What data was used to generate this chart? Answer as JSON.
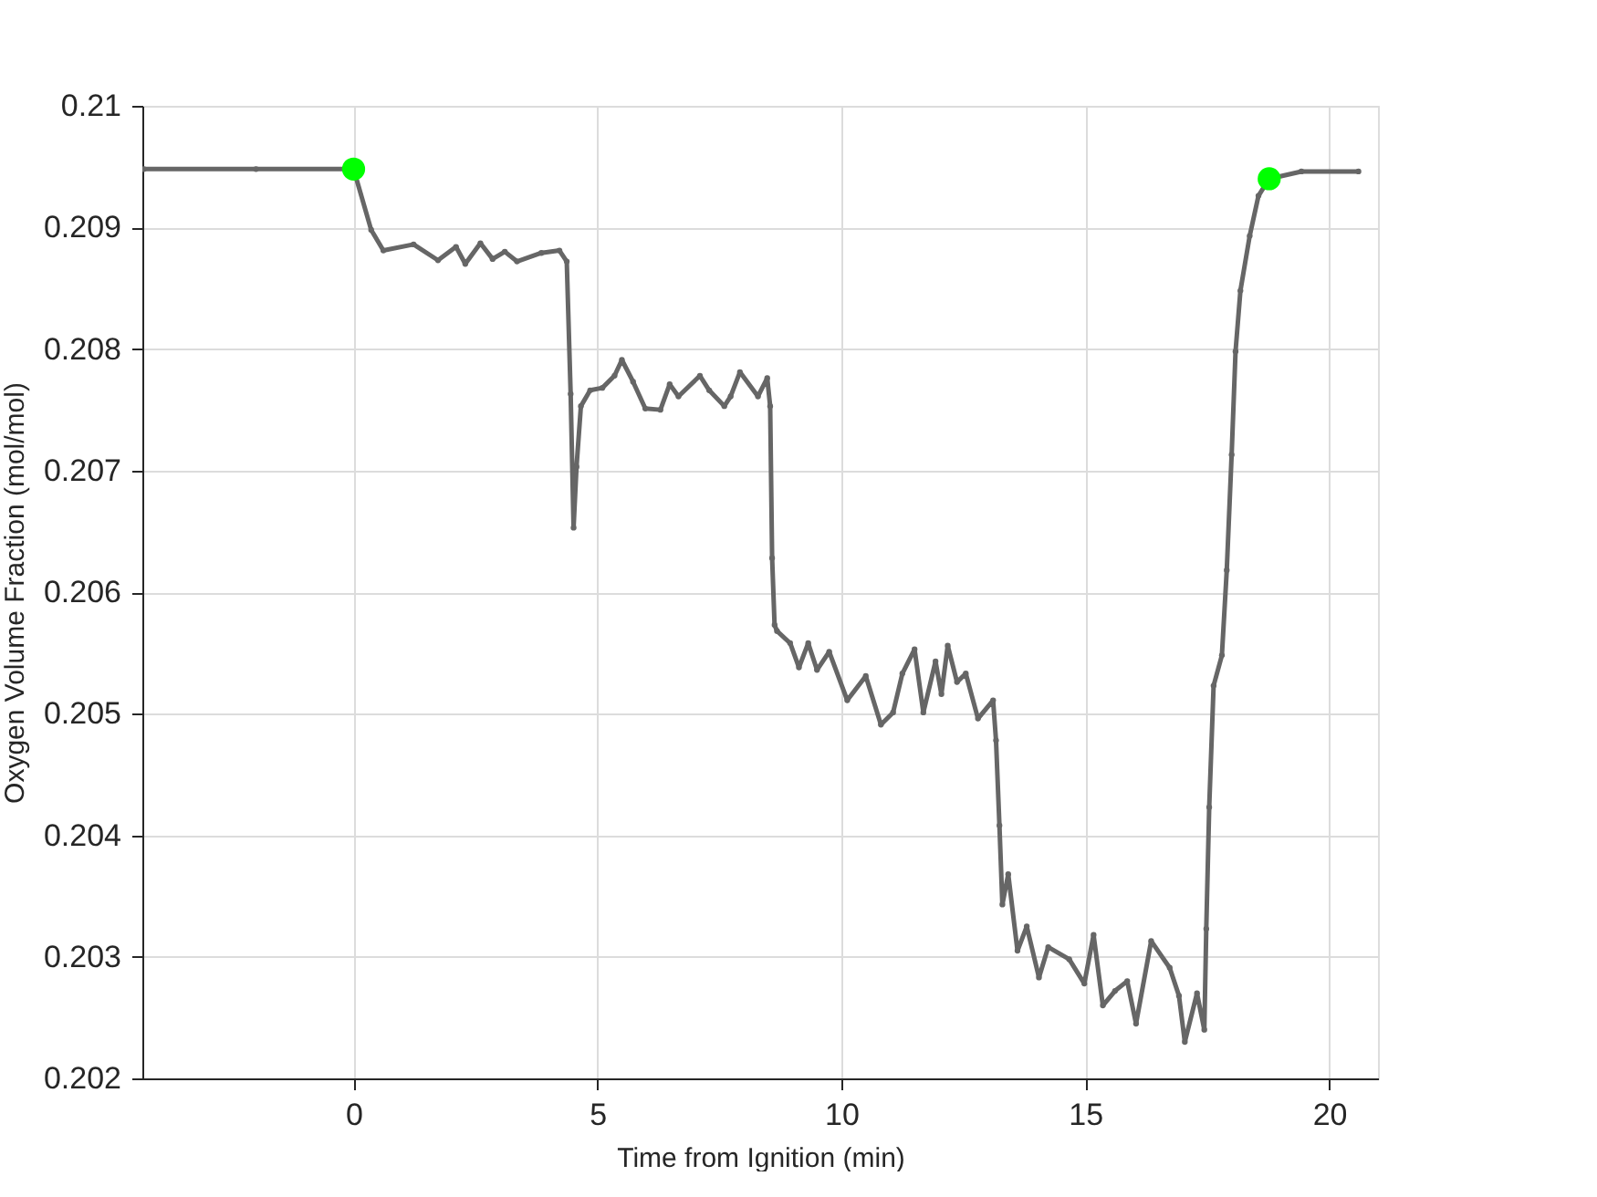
{
  "chart_data": {
    "type": "line",
    "xlabel": "Time from Ignition (min)",
    "ylabel": "Oxygen Volume Fraction (mol/mol)",
    "xlim": [
      -4.33,
      21
    ],
    "ylim": [
      0.202,
      0.21
    ],
    "xticks": [
      0,
      5,
      10,
      15,
      20
    ],
    "yticks": [
      0.202,
      0.203,
      0.204,
      0.205,
      0.206,
      0.207,
      0.208,
      0.209,
      0.21
    ],
    "grid": true,
    "marker": "circle",
    "line_style": "solid",
    "series": [
      {
        "color": "#666666",
        "x": [
          -4.3,
          -2,
          0,
          0.36,
          0.61,
          1.23,
          1.73,
          2.1,
          2.29,
          2.6,
          2.85,
          3.1,
          3.35,
          3.85,
          4.22,
          4.37,
          4.45,
          4.51,
          4.57,
          4.66,
          4.85,
          5.1,
          5.35,
          5.5,
          5.73,
          5.98,
          6.29,
          6.48,
          6.66,
          7.1,
          7.29,
          7.6,
          7.73,
          7.92,
          8.29,
          8.48,
          8.54,
          8.58,
          8.63,
          8.68,
          8.95,
          9.13,
          9.32,
          9.5,
          9.75,
          10.12,
          10.5,
          10.81,
          11.06,
          11.25,
          11.5,
          11.68,
          11.93,
          12.05,
          12.18,
          12.37,
          12.55,
          12.8,
          13.11,
          13.17,
          13.24,
          13.3,
          13.42,
          13.61,
          13.8,
          14.05,
          14.24,
          14.67,
          14.98,
          15.17,
          15.36,
          15.61,
          15.86,
          16.04,
          16.35,
          16.73,
          16.92,
          17.04,
          17.29,
          17.44,
          17.48,
          17.54,
          17.63,
          17.8,
          17.9,
          18.0,
          18.08,
          18.18,
          18.37,
          18.55,
          18.77,
          19.43,
          20.6
        ],
        "values": [
          0.20948,
          0.20948,
          0.20948,
          0.20898,
          0.20881,
          0.20886,
          0.20873,
          0.20884,
          0.2087,
          0.20887,
          0.20874,
          0.2088,
          0.20872,
          0.20879,
          0.20881,
          0.20872,
          0.20763,
          0.20653,
          0.20703,
          0.20753,
          0.20766,
          0.20768,
          0.20778,
          0.20791,
          0.20773,
          0.20751,
          0.2075,
          0.20771,
          0.20761,
          0.20778,
          0.20766,
          0.20753,
          0.20761,
          0.20781,
          0.20761,
          0.20776,
          0.20753,
          0.20628,
          0.20573,
          0.20568,
          0.20558,
          0.20538,
          0.20558,
          0.20536,
          0.20551,
          0.20511,
          0.20531,
          0.20491,
          0.20501,
          0.20533,
          0.20553,
          0.20501,
          0.20543,
          0.20516,
          0.20556,
          0.20526,
          0.20533,
          0.20496,
          0.20511,
          0.20478,
          0.20408,
          0.20343,
          0.20368,
          0.20305,
          0.20325,
          0.20283,
          0.20308,
          0.20298,
          0.20278,
          0.20318,
          0.2026,
          0.20272,
          0.2028,
          0.20245,
          0.20313,
          0.20291,
          0.20268,
          0.2023,
          0.2027,
          0.2024,
          0.20323,
          0.20423,
          0.20523,
          0.20548,
          0.20618,
          0.20713,
          0.20798,
          0.20848,
          0.20893,
          0.20926,
          0.2094,
          0.20946,
          0.20946
        ]
      },
      {
        "type": "scatter",
        "color": "#00ff00",
        "x": [
          0,
          18.77
        ],
        "values": [
          0.20948,
          0.2094
        ]
      }
    ]
  }
}
